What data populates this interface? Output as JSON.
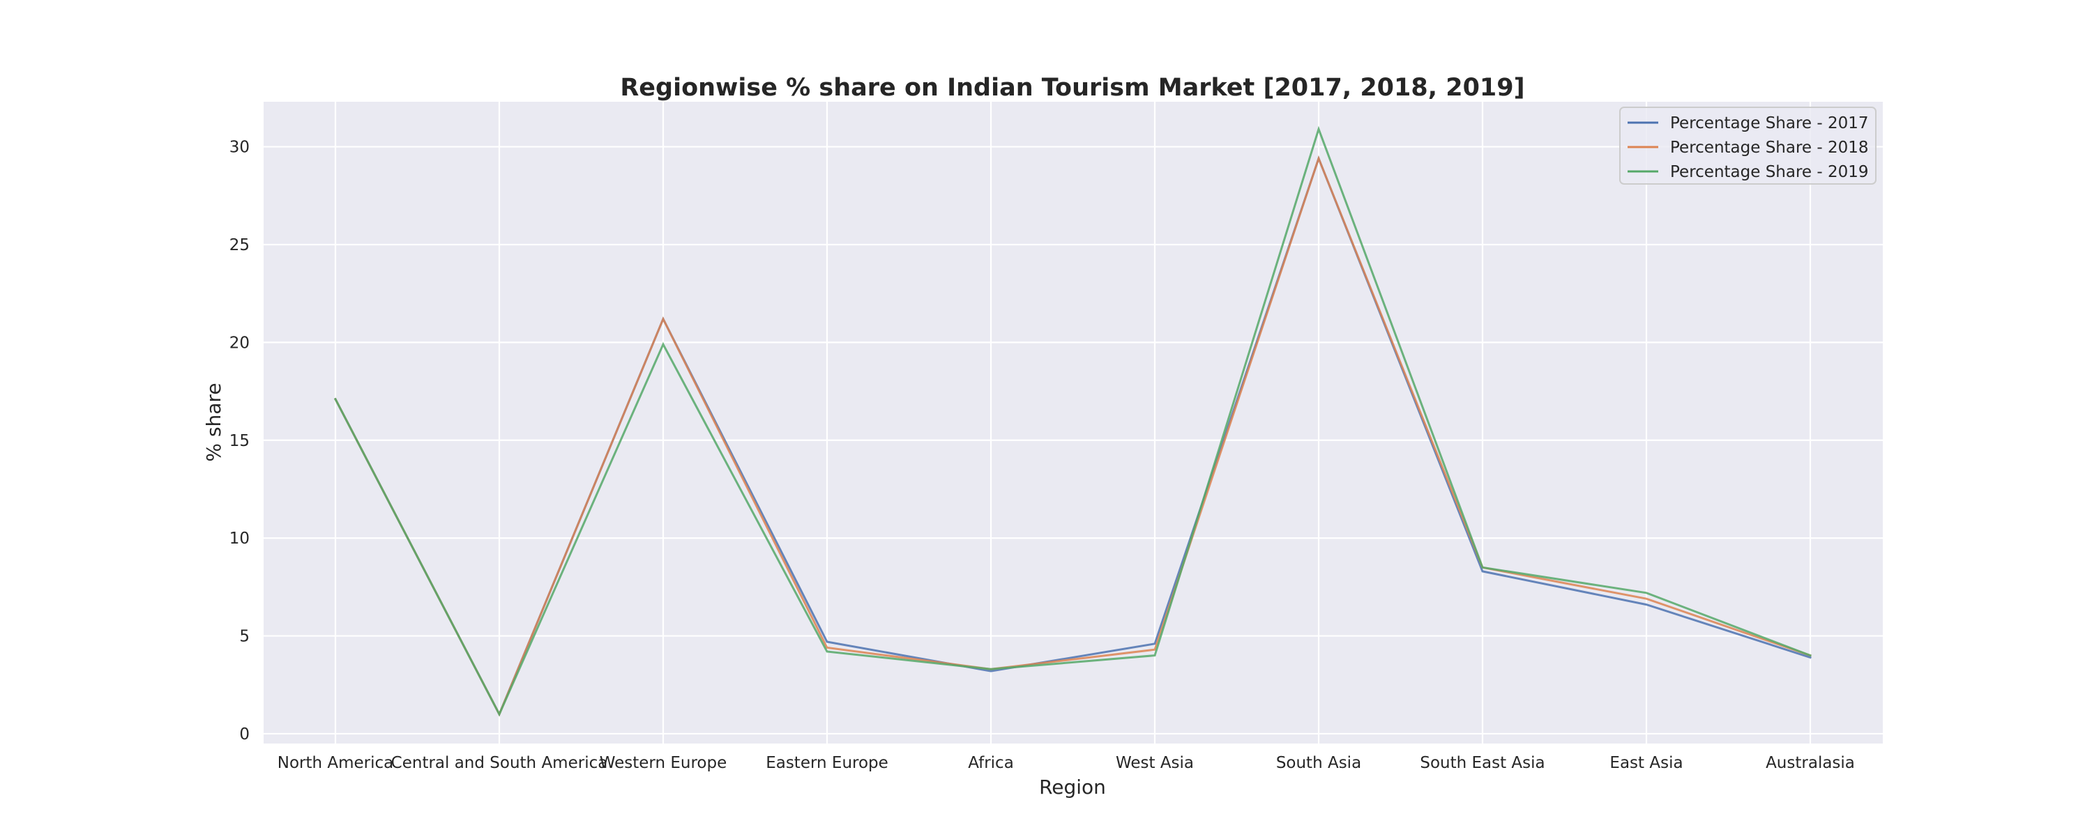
{
  "chart_data": {
    "type": "line",
    "title": "Regionwise % share on Indian Tourism Market [2017, 2018, 2019]",
    "xlabel": "Region",
    "ylabel": "% share",
    "categories": [
      "North America",
      "Central and South America",
      "Western Europe",
      "Eastern Europe",
      "Africa",
      "West Asia",
      "South Asia",
      "South East Asia",
      "East Asia",
      "Australasia"
    ],
    "series": [
      {
        "name": "Percentage Share - 2017",
        "color": "#4c72b0",
        "values": [
          17.1,
          1.0,
          21.2,
          4.7,
          3.2,
          4.6,
          29.4,
          8.3,
          6.6,
          3.9
        ]
      },
      {
        "name": "Percentage Share - 2018",
        "color": "#dd8452",
        "values": [
          17.1,
          1.0,
          21.2,
          4.4,
          3.3,
          4.3,
          29.4,
          8.5,
          6.9,
          4.0
        ]
      },
      {
        "name": "Percentage Share - 2019",
        "color": "#55a868",
        "values": [
          17.1,
          1.0,
          19.9,
          4.2,
          3.3,
          4.0,
          30.9,
          8.5,
          7.2,
          4.0
        ]
      }
    ],
    "ylim": [
      -0.5,
      32.3
    ],
    "yticks": [
      0,
      5,
      10,
      15,
      20,
      25,
      30
    ],
    "grid": true,
    "legend_position": "top-right",
    "background": "#eaeaf2"
  }
}
